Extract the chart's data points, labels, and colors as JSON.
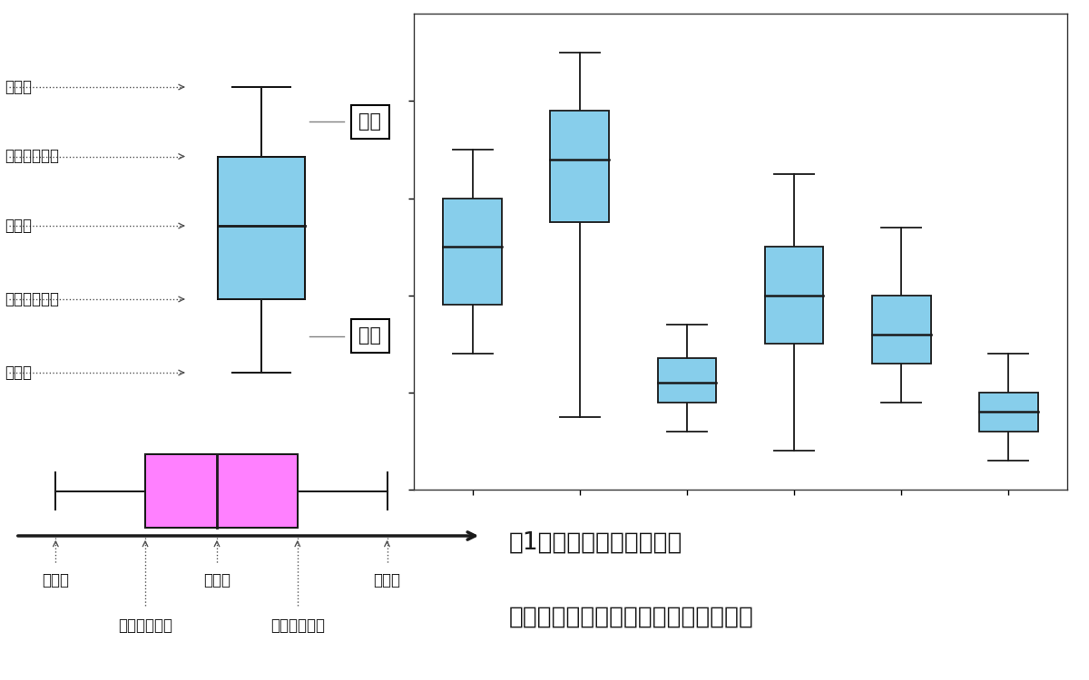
{
  "bg_color": "#ffffff",
  "blue_color": "#87CEEB",
  "pink_color": "#FF80FF",
  "box_edge_color": "#1a1a1a",
  "line_color": "#1a1a1a",
  "text_color": "#1a1a1a",
  "label_color": "#555555",
  "vert_box": {
    "min_val": 12,
    "q1": 30,
    "median": 48,
    "q3": 65,
    "max_val": 82
  },
  "horiz_box": {
    "min_val": 8,
    "q1": 28,
    "median": 44,
    "q3": 62,
    "max_val": 82
  },
  "multi_boxes": [
    {
      "min_v": 28,
      "q1": 38,
      "med": 50,
      "q3": 60,
      "max_v": 70
    },
    {
      "min_v": 15,
      "q1": 55,
      "med": 68,
      "q3": 78,
      "max_v": 90
    },
    {
      "min_v": 12,
      "q1": 18,
      "med": 22,
      "q3": 27,
      "max_v": 34
    },
    {
      "min_v": 8,
      "q1": 30,
      "med": 40,
      "q3": 50,
      "max_v": 65
    },
    {
      "min_v": 18,
      "q1": 26,
      "med": 32,
      "q3": 40,
      "max_v": 54
    },
    {
      "min_v": 6,
      "q1": 12,
      "med": 16,
      "q3": 20,
      "max_v": 28
    }
  ],
  "labels_vert": {
    "max_label": "最大値",
    "q3_label": "第３四分位数",
    "med_label": "中央値",
    "q1_label": "第１四分位数",
    "min_label": "最小値",
    "hige_label": "ひげ"
  },
  "labels_horiz": {
    "min_label": "最小値",
    "med_label": "中央値",
    "max_label": "最大値",
    "q1_label": "第１四分位数",
    "q3_label": "第３四分位数"
  },
  "bottom_right_line1": "符1ひげ図を使うことで、",
  "bottom_right_line2": "複数集団のデータ分布の比較ができる",
  "font_size_label": 12,
  "font_size_hige": 15,
  "font_size_bottom": 19
}
